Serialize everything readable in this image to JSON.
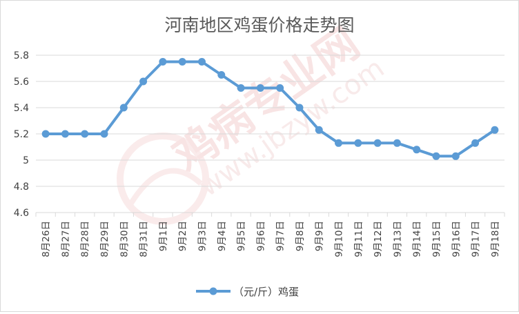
{
  "chart_data": {
    "type": "line",
    "title": "河南地区鸡蛋价格走势图",
    "xlabel": "",
    "ylabel": "",
    "ylim": [
      4.6,
      5.8
    ],
    "yticks": [
      4.6,
      4.8,
      5,
      5.2,
      5.4,
      5.6,
      5.8
    ],
    "ytick_labels": [
      "4.6",
      "4.8",
      "5",
      "5.2",
      "5.4",
      "5.6",
      "5.8"
    ],
    "grid": true,
    "legend_position": "bottom",
    "categories": [
      "8月26日",
      "8月27日",
      "8月28日",
      "8月29日",
      "8月30日",
      "8月31日",
      "9月1日",
      "9月2日",
      "9月3日",
      "9月4日",
      "9月5日",
      "9月6日",
      "9月7日",
      "9月8日",
      "9月9日",
      "9月10日",
      "9月11日",
      "9月12日",
      "9月13日",
      "9月14日",
      "9月15日",
      "9月16日",
      "9月17日",
      "9月18日"
    ],
    "series": [
      {
        "name": "（元/斤）鸡蛋",
        "color": "#5b9bd5",
        "values": [
          5.2,
          5.2,
          5.2,
          5.2,
          5.4,
          5.6,
          5.75,
          5.75,
          5.75,
          5.65,
          5.55,
          5.55,
          5.55,
          5.4,
          5.23,
          5.13,
          5.13,
          5.13,
          5.13,
          5.08,
          5.03,
          5.03,
          5.13,
          5.23
        ]
      }
    ]
  },
  "colors": {
    "line": "#5b9bd5",
    "grid": "#d9d9d9",
    "axis_text": "#404040",
    "title_text": "#595959",
    "watermark": "#f3cfcf"
  },
  "watermark": {
    "brand": "鸡病专业网",
    "url": "www.jbzyw.com"
  }
}
